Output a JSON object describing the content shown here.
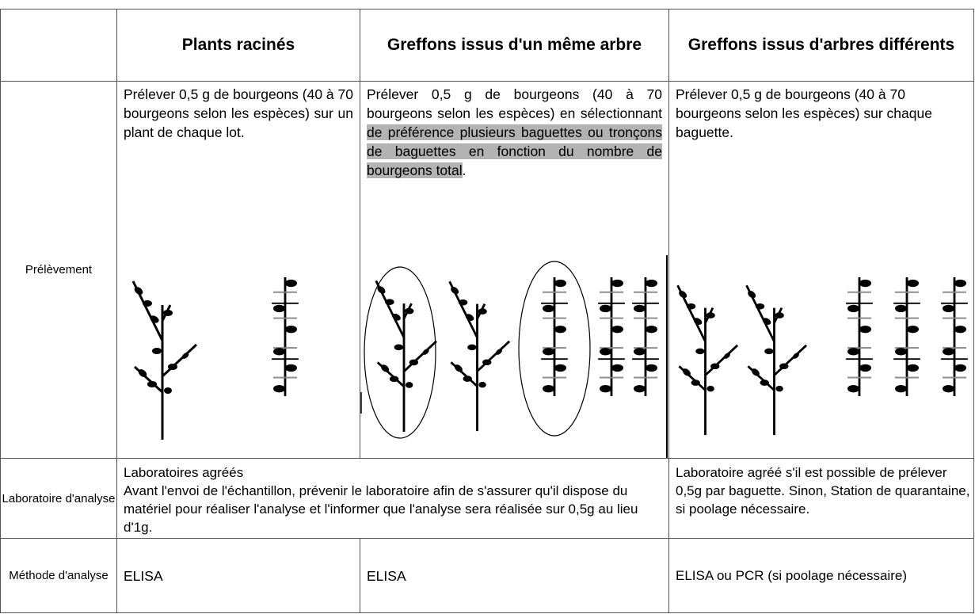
{
  "table": {
    "header": [
      "Plants racinés",
      "Greffons issus d'un même arbre",
      "Greffons issus d'arbres différents"
    ],
    "rows": [
      {
        "label": "Prélèvement",
        "cells": [
          "Prélever 0,5 g de bourgeons (40 à 70 bourgeons selon les espèces) sur un plant de chaque lot.",
          [
            "Prélever 0,5 g de bourgeons (40 à 70 bourgeons selon les espèces) en sélectionnant ",
            "de préférence plusieurs baguettes ou tronçons de baguettes en fonction du nombre de bourgeons total",
            "."
          ],
          "Prélever 0,5 g de bourgeons (40 à 70 bourgeons selon les espèces) sur chaque baguette."
        ]
      },
      {
        "label": "Laboratoire d'analyse",
        "cells": [
          [
            "Laboratoires agréés",
            "Avant l'envoi de l'échantillon, prévenir le laboratoire afin de s'assurer qu'il dispose du matériel pour réaliser l'analyse et l'informer que l'analyse sera réalisée sur 0,5g au lieu d'1g."
          ],
          "Laboratoire agréé s'il est possible de prélever 0,5g par baguette. Sinon, Station de quarantaine, si poolage nécessaire."
        ]
      },
      {
        "label": "Méthode d'analyse",
        "cells": [
          "ELISA",
          "ELISA",
          "ELISA ou PCR (si poolage nécessaire)"
        ]
      }
    ]
  }
}
